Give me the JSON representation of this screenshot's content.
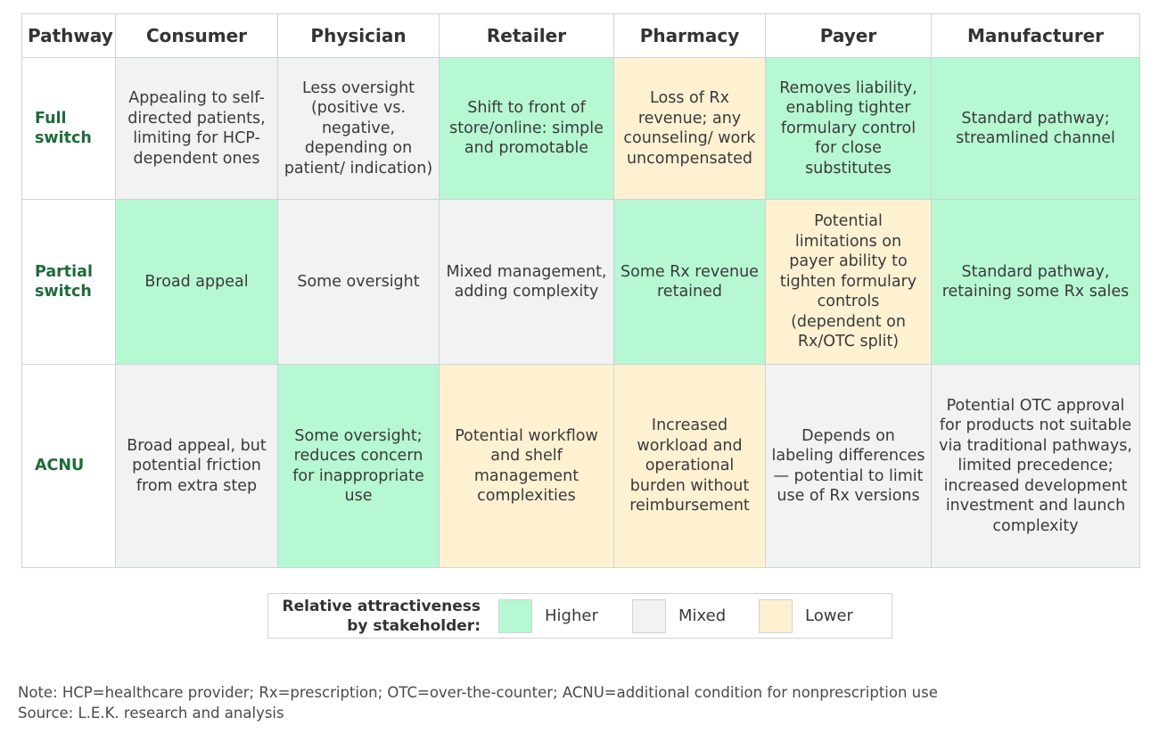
{
  "chart_data": {
    "type": "table",
    "columns": [
      "Pathway",
      "Consumer",
      "Physician",
      "Retailer",
      "Pharmacy",
      "Payer",
      "Manufacturer"
    ],
    "rows": [
      {
        "pathway": "Full switch",
        "cells": [
          {
            "text": "Appealing to self-directed patients, limiting for HCP-dependent ones",
            "rating": "Mixed"
          },
          {
            "text": "Less oversight (positive vs. negative, depending on patient/ indication)",
            "rating": "Mixed"
          },
          {
            "text": "Shift to front of store/online: simple and promotable",
            "rating": "Higher"
          },
          {
            "text": "Loss of Rx revenue; any counseling/ work uncompensated",
            "rating": "Lower"
          },
          {
            "text": "Removes liability, enabling tighter formulary control for close substitutes",
            "rating": "Higher"
          },
          {
            "text": "Standard pathway; streamlined channel",
            "rating": "Higher"
          }
        ]
      },
      {
        "pathway": "Partial switch",
        "cells": [
          {
            "text": "Broad appeal",
            "rating": "Higher"
          },
          {
            "text": "Some oversight",
            "rating": "Mixed"
          },
          {
            "text": "Mixed management, adding complexity",
            "rating": "Mixed"
          },
          {
            "text": "Some Rx revenue retained",
            "rating": "Higher"
          },
          {
            "text": "Potential limitations on payer ability to tighten formulary controls (dependent on Rx/OTC split)",
            "rating": "Lower"
          },
          {
            "text": "Standard pathway, retaining some Rx sales",
            "rating": "Higher"
          }
        ]
      },
      {
        "pathway": "ACNU",
        "cells": [
          {
            "text": "Broad appeal, but potential friction from extra step",
            "rating": "Mixed"
          },
          {
            "text": "Some oversight; reduces concern for inappropriate use",
            "rating": "Higher"
          },
          {
            "text": "Potential workflow and shelf management complexities",
            "rating": "Lower"
          },
          {
            "text": "Increased workload and operational burden without reimbursement",
            "rating": "Lower"
          },
          {
            "text": "Depends on labeling differences — potential to limit use of Rx versions",
            "rating": "Mixed"
          },
          {
            "text": "Potential OTC approval for products not suitable via traditional pathways, limited precedence; increased development investment and launch complexity",
            "rating": "Mixed"
          }
        ]
      }
    ],
    "legend": {
      "title": "Relative attractiveness by stakeholder:",
      "items": [
        {
          "label": "Higher",
          "color": "#b6f8d2"
        },
        {
          "label": "Mixed",
          "color": "#f1f2f2"
        },
        {
          "label": "Lower",
          "color": "#fdf1d2"
        }
      ]
    }
  },
  "footnotes": {
    "note": "Note: HCP=healthcare provider; Rx=prescription; OTC=over-the-counter; ACNU=additional condition for nonprescription use",
    "source": "Source: L.E.K. research and analysis"
  },
  "colors": {
    "higher": "#b6f8d2",
    "mixed": "#f1f2f2",
    "lower": "#fdf1d2",
    "pathway_label": "#1f6b3a"
  }
}
